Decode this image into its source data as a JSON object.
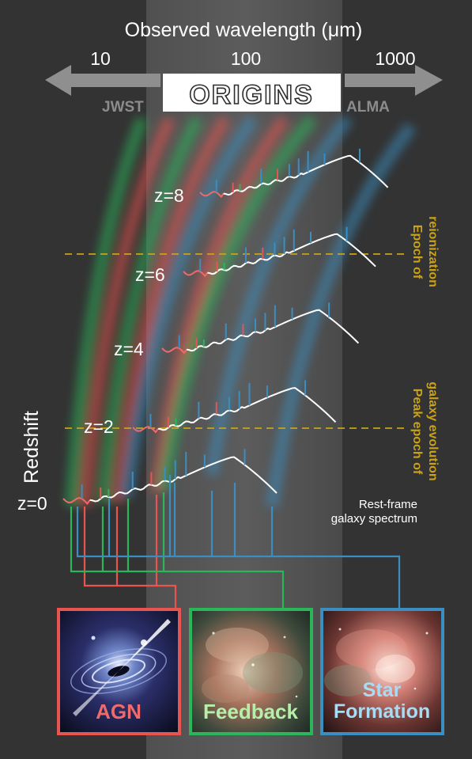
{
  "top_axis": {
    "title": "Observed wavelength (μm)",
    "ticks": [
      "10",
      "100",
      "1000"
    ]
  },
  "telescopes": {
    "left": "JWST",
    "center": "ORIGINS",
    "right": "ALMA"
  },
  "redshift_axis": {
    "title": "Redshift",
    "labels": [
      "z=0",
      "z=2",
      "z=4",
      "z=6",
      "z=8"
    ]
  },
  "epochs": {
    "reionization": [
      "Epoch of",
      "reionization"
    ],
    "peak": [
      "Peak epoch of",
      "galaxy evolution"
    ]
  },
  "rest_frame_label": [
    "Rest-frame",
    "galaxy spectrum"
  ],
  "panels": [
    {
      "label": "AGN",
      "color": "#e85550"
    },
    {
      "label": "Feedback",
      "color": "#2bb65a"
    },
    {
      "label": "Star\nFormation",
      "color": "#3a8ec0"
    }
  ],
  "colors": {
    "agn": "#e85550",
    "feedback": "#2bb65a",
    "star_formation": "#3a8ec0",
    "epoch_line": "#c9a21a",
    "arrow": "#8f8f8f"
  }
}
